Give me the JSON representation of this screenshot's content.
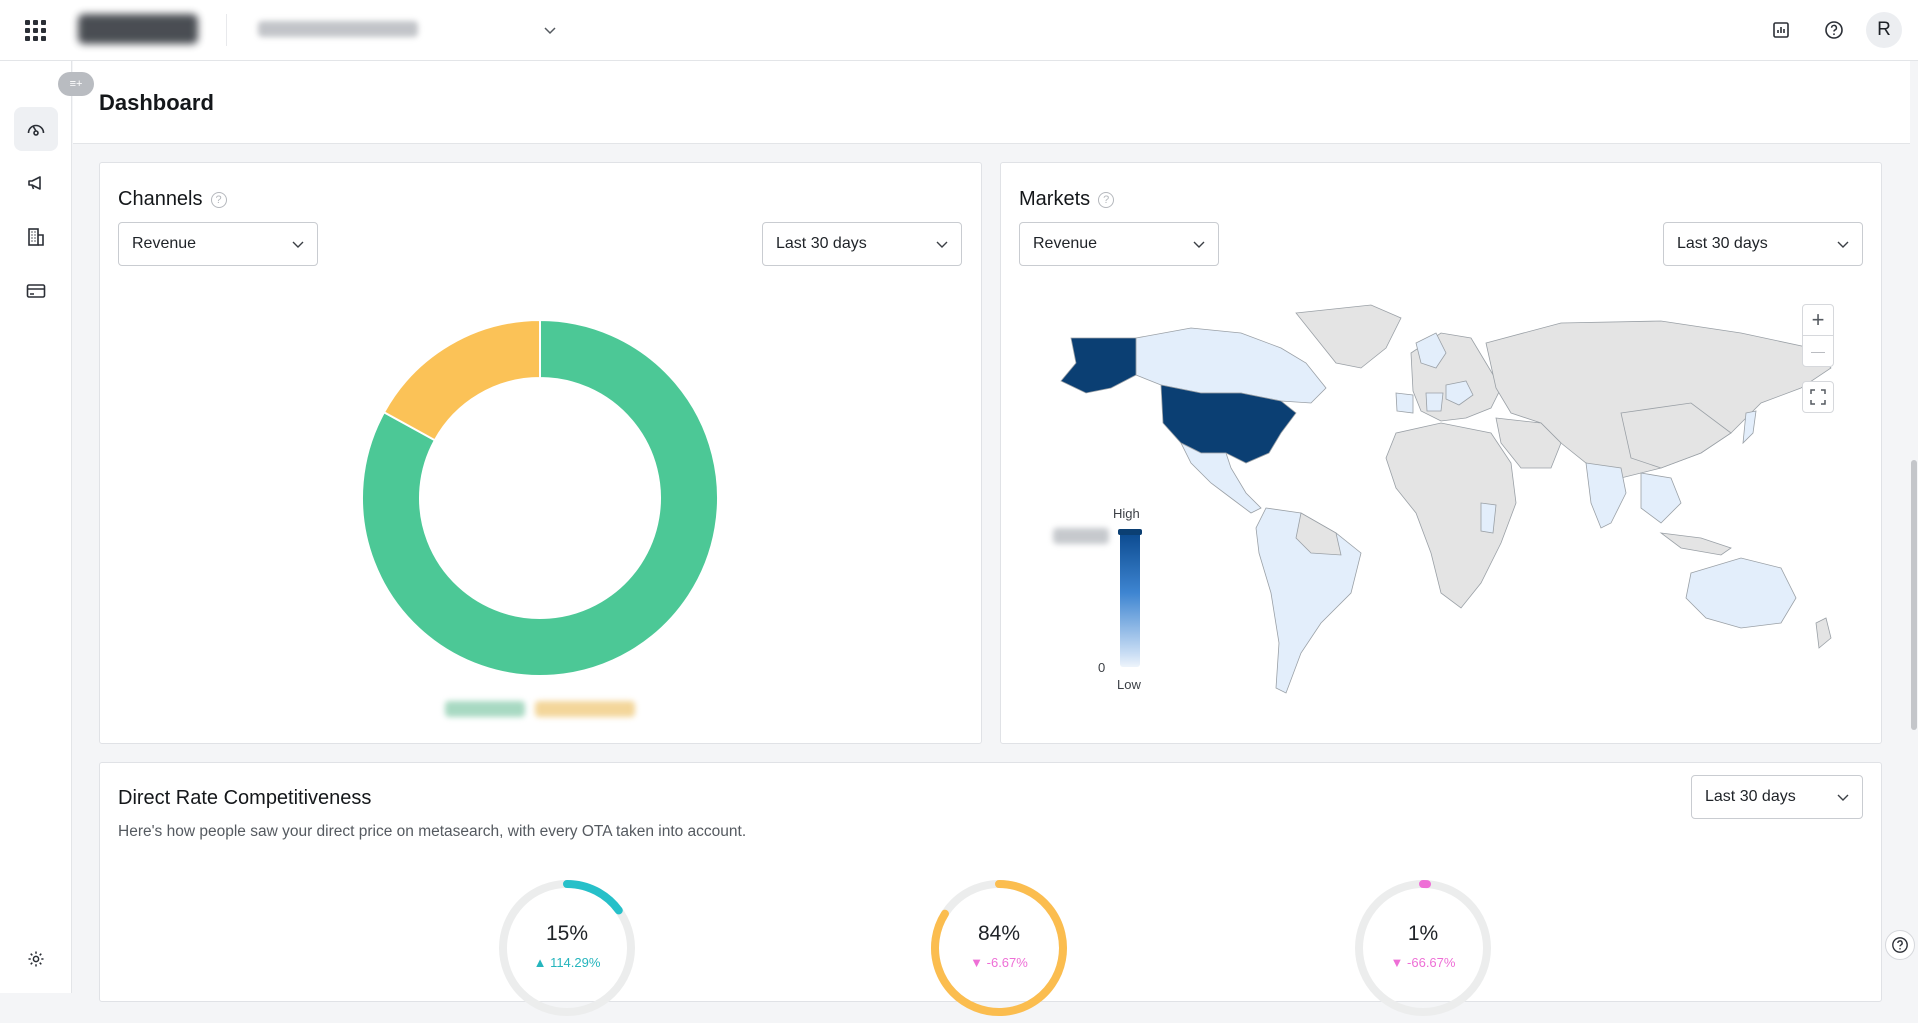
{
  "topbar": {
    "avatar_initial": "R",
    "icons": [
      "apps-grid-icon",
      "report-chart-icon",
      "help-icon"
    ]
  },
  "sidebar": {
    "items": [
      {
        "name": "dashboard",
        "icon": "gauge-icon",
        "active": true
      },
      {
        "name": "campaigns",
        "icon": "megaphone-icon",
        "active": false
      },
      {
        "name": "properties",
        "icon": "building-icon",
        "active": false
      },
      {
        "name": "billing",
        "icon": "credit-card-icon",
        "active": false
      }
    ],
    "settings_icon": "gear-icon"
  },
  "page": {
    "title": "Dashboard"
  },
  "channels": {
    "title": "Channels",
    "metric_select": "Revenue",
    "period_select": "Last 30 days",
    "chart_data": {
      "type": "pie",
      "donut": true,
      "slices": [
        {
          "value": 83,
          "color": "#4cc896"
        },
        {
          "value": 17,
          "color": "#fbc257"
        }
      ],
      "legend_placement": "bottom"
    }
  },
  "markets": {
    "title": "Markets",
    "metric_select": "Revenue",
    "period_select": "Last 30 days",
    "scale": {
      "high_label": "High",
      "low_label": "Low",
      "zero_label": "0"
    },
    "controls": {
      "zoom_in": "+",
      "zoom_out": "—"
    },
    "colors": {
      "high": "#0b3f73",
      "low": "#e3eefb",
      "none": "#e4e4e4"
    }
  },
  "drc": {
    "title": "Direct Rate Competitiveness",
    "period_select": "Last 30 days",
    "description": "Here's how people saw your direct price on metasearch, with every OTA taken into account.",
    "gauges": [
      {
        "value": "15%",
        "delta": "114.29%",
        "direction": "up",
        "fraction": 0.15,
        "color": "#26c0c9"
      },
      {
        "value": "84%",
        "delta": "-6.67%",
        "direction": "down",
        "fraction": 0.84,
        "color": "#fbbd4f"
      },
      {
        "value": "1%",
        "delta": "-66.67%",
        "direction": "down",
        "fraction": 0.01,
        "color": "#ee6fd6"
      }
    ]
  }
}
